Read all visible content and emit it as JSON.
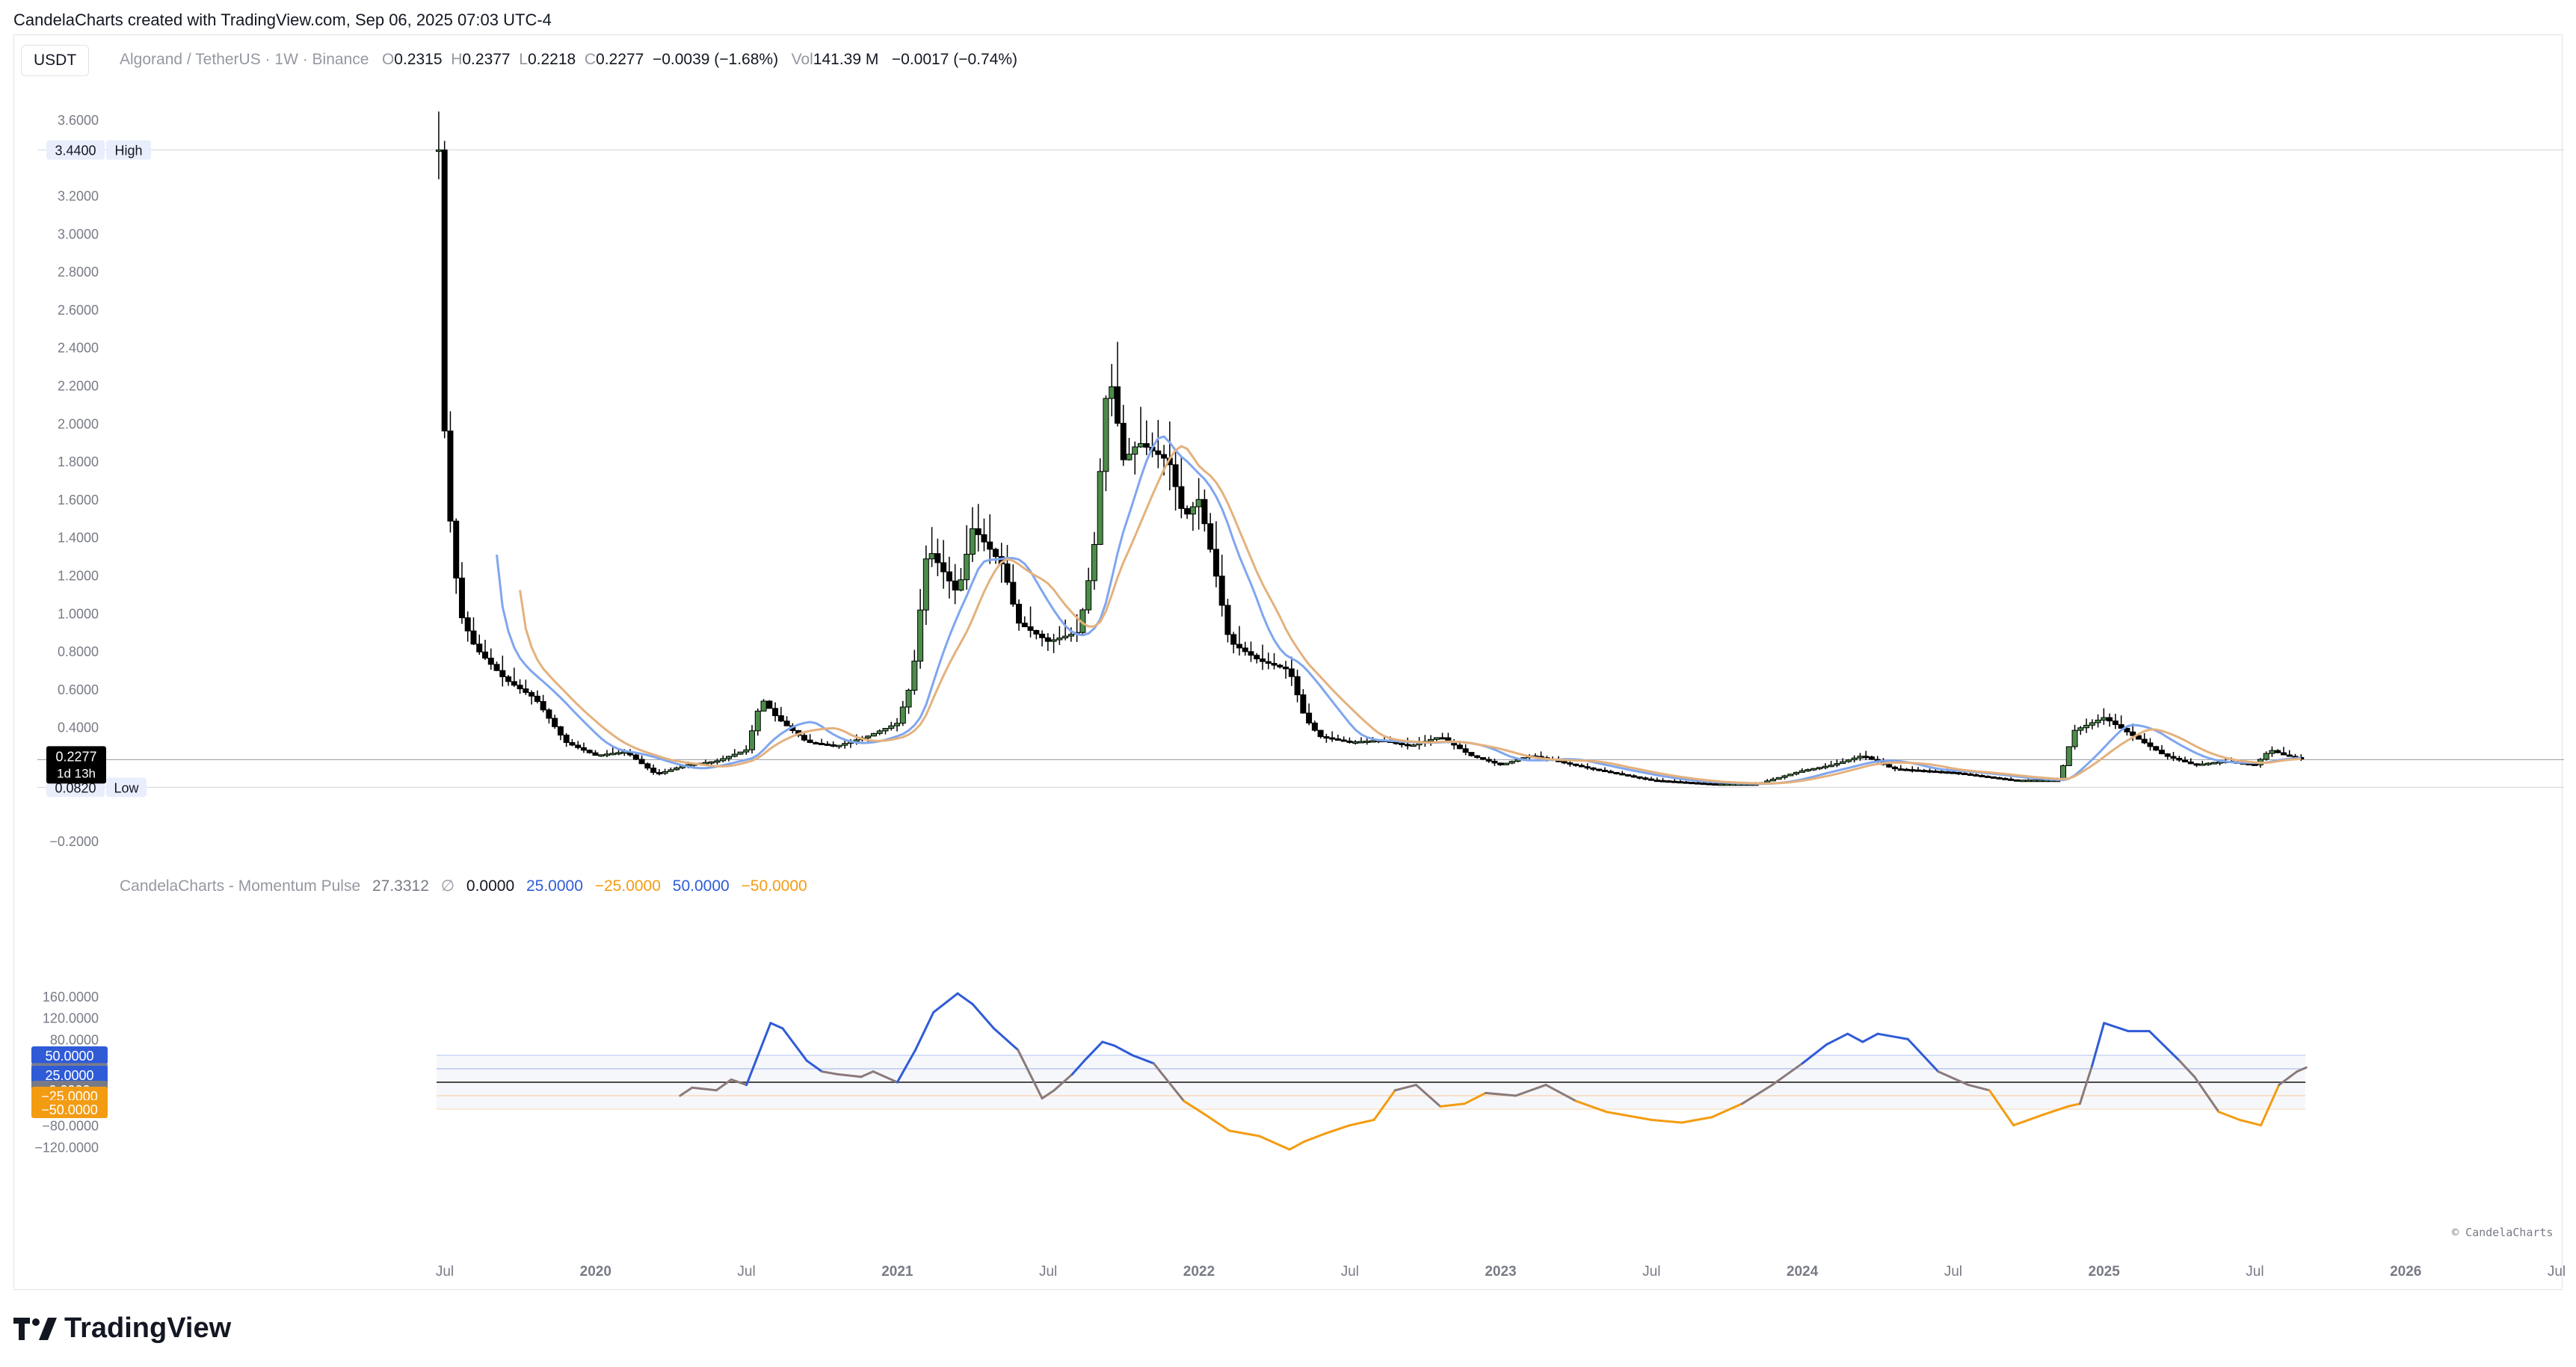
{
  "header": {
    "text": "CandelaCharts created with TradingView.com, Sep 06, 2025 07:03 UTC-4"
  },
  "symbol_button": "USDT",
  "legend": {
    "pair": "Algorand / TetherUS · 1W · Binance",
    "o_label": "O",
    "o": "0.2315",
    "h_label": "H",
    "h": "0.2377",
    "l_label": "L",
    "l": "0.2218",
    "c_label": "C",
    "c": "0.2277",
    "chg": "−0.0039 (−1.68%)",
    "vol_label": "Vol",
    "vol": "141.39 M",
    "vol_chg": "−0.0017 (−0.74%)"
  },
  "indicator_legend": {
    "name": "CandelaCharts - Momentum Pulse",
    "v1": "27.3312",
    "sym": "∅",
    "v2": "0.0000",
    "v3": "25.0000",
    "v4": "−25.0000",
    "v5": "50.0000",
    "v6": "−50.0000"
  },
  "colors": {
    "up": "#4c8c4a",
    "down": "#000000",
    "ma1": "#7fa6ef",
    "ma2": "#e4b17d",
    "pos": "#2f5bd7",
    "neg": "#f39c12",
    "mid": "#8b7a7a"
  },
  "price_labels": {
    "high_val": "3.4400",
    "high_tag": "High",
    "low_val": "0.0820",
    "low_tag": "Low",
    "last_val": "0.2277",
    "countdown": "1d 13h"
  },
  "osc_labels": {
    "p50": "50.0000",
    "cur": "27.3312",
    "p25": "25.0000",
    "zero": "0.0000",
    "m25": "−25.0000",
    "m50": "−50.0000"
  },
  "copyright": "© CandelaCharts",
  "brand": "TradingView",
  "chart_data": [
    {
      "type": "candlestick",
      "title": "Algorand / TetherUS · 1W · Binance",
      "ylim": [
        -0.2,
        3.6
      ],
      "yticks": [
        "3.6000",
        "3.2000",
        "3.0000",
        "2.8000",
        "2.6000",
        "2.4000",
        "2.2000",
        "2.0000",
        "1.8000",
        "1.6000",
        "1.4000",
        "1.2000",
        "1.0000",
        "0.8000",
        "0.6000",
        "0.4000",
        "−0.2000"
      ],
      "x_ticks": [
        "Jul",
        "2020",
        "Jul",
        "2021",
        "Jul",
        "2022",
        "Jul",
        "2023",
        "Jul",
        "2024",
        "Jul",
        "2025",
        "Jul",
        "2026",
        "Jul"
      ],
      "high": 3.44,
      "low": 0.082,
      "last": 0.2277,
      "close_path": [
        [
          2019.48,
          3.44
        ],
        [
          2019.5,
          1.9
        ],
        [
          2019.52,
          1.45
        ],
        [
          2019.55,
          1.0
        ],
        [
          2019.6,
          0.82
        ],
        [
          2019.7,
          0.65
        ],
        [
          2019.8,
          0.55
        ],
        [
          2019.9,
          0.32
        ],
        [
          2020.0,
          0.25
        ],
        [
          2020.1,
          0.27
        ],
        [
          2020.2,
          0.15
        ],
        [
          2020.3,
          0.2
        ],
        [
          2020.4,
          0.22
        ],
        [
          2020.5,
          0.28
        ],
        [
          2020.55,
          0.55
        ],
        [
          2020.6,
          0.45
        ],
        [
          2020.7,
          0.32
        ],
        [
          2020.8,
          0.3
        ],
        [
          2020.9,
          0.35
        ],
        [
          2021.0,
          0.42
        ],
        [
          2021.05,
          0.65
        ],
        [
          2021.1,
          1.35
        ],
        [
          2021.2,
          1.1
        ],
        [
          2021.25,
          1.45
        ],
        [
          2021.3,
          1.35
        ],
        [
          2021.35,
          1.25
        ],
        [
          2021.4,
          0.95
        ],
        [
          2021.5,
          0.85
        ],
        [
          2021.6,
          0.9
        ],
        [
          2021.65,
          1.3
        ],
        [
          2021.7,
          2.3
        ],
        [
          2021.75,
          1.8
        ],
        [
          2021.8,
          1.9
        ],
        [
          2021.9,
          1.8
        ],
        [
          2021.95,
          1.5
        ],
        [
          2022.0,
          1.6
        ],
        [
          2022.05,
          1.25
        ],
        [
          2022.1,
          0.85
        ],
        [
          2022.2,
          0.75
        ],
        [
          2022.3,
          0.7
        ],
        [
          2022.35,
          0.45
        ],
        [
          2022.4,
          0.35
        ],
        [
          2022.5,
          0.32
        ],
        [
          2022.6,
          0.33
        ],
        [
          2022.7,
          0.3
        ],
        [
          2022.8,
          0.35
        ],
        [
          2022.85,
          0.3
        ],
        [
          2022.9,
          0.25
        ],
        [
          2023.0,
          0.2
        ],
        [
          2023.1,
          0.25
        ],
        [
          2023.3,
          0.18
        ],
        [
          2023.5,
          0.12
        ],
        [
          2023.7,
          0.1
        ],
        [
          2023.85,
          0.1
        ],
        [
          2024.0,
          0.17
        ],
        [
          2024.1,
          0.2
        ],
        [
          2024.2,
          0.25
        ],
        [
          2024.3,
          0.18
        ],
        [
          2024.5,
          0.16
        ],
        [
          2024.7,
          0.12
        ],
        [
          2024.85,
          0.12
        ],
        [
          2024.9,
          0.38
        ],
        [
          2025.0,
          0.45
        ],
        [
          2025.1,
          0.35
        ],
        [
          2025.2,
          0.25
        ],
        [
          2025.3,
          0.2
        ],
        [
          2025.4,
          0.22
        ],
        [
          2025.5,
          0.2
        ],
        [
          2025.55,
          0.28
        ],
        [
          2025.6,
          0.25
        ],
        [
          2025.67,
          0.2277
        ]
      ]
    },
    {
      "type": "line",
      "title": "CandelaCharts - Momentum Pulse",
      "ylim": [
        -130,
        170
      ],
      "yticks": [
        "160.0000",
        "120.0000",
        "80.0000",
        "−80.0000",
        "−120.0000"
      ],
      "levels": [
        50,
        25,
        0,
        -25,
        -50
      ],
      "last": 27.3312,
      "x": [
        2020.28,
        2020.32,
        2020.4,
        2020.45,
        2020.5,
        2020.58,
        2020.62,
        2020.7,
        2020.75,
        2020.8,
        2020.88,
        2020.92,
        2021.0,
        2021.06,
        2021.12,
        2021.2,
        2021.25,
        2021.32,
        2021.4,
        2021.48,
        2021.52,
        2021.58,
        2021.62,
        2021.68,
        2021.72,
        2021.78,
        2021.85,
        2021.95,
        2022.02,
        2022.1,
        2022.2,
        2022.3,
        2022.35,
        2022.42,
        2022.5,
        2022.58,
        2022.65,
        2022.72,
        2022.8,
        2022.88,
        2022.95,
        2023.05,
        2023.15,
        2023.25,
        2023.35,
        2023.5,
        2023.6,
        2023.7,
        2023.8,
        2023.9,
        2024.0,
        2024.08,
        2024.15,
        2024.2,
        2024.25,
        2024.35,
        2024.45,
        2024.55,
        2024.62,
        2024.7,
        2024.8,
        2024.88,
        2024.92,
        2024.96,
        2025.0,
        2025.08,
        2025.15,
        2025.25,
        2025.3,
        2025.38,
        2025.45,
        2025.52,
        2025.58,
        2025.64,
        2025.67
      ],
      "y": [
        -25,
        -10,
        -15,
        5,
        -5,
        110,
        100,
        40,
        20,
        15,
        10,
        20,
        0,
        60,
        130,
        165,
        145,
        100,
        60,
        -30,
        -15,
        15,
        40,
        75,
        68,
        50,
        35,
        -35,
        -60,
        -90,
        -100,
        -125,
        -110,
        -95,
        -80,
        -70,
        -15,
        -5,
        -45,
        -40,
        -20,
        -25,
        -5,
        -35,
        -55,
        -70,
        -75,
        -65,
        -40,
        -5,
        35,
        70,
        90,
        75,
        90,
        80,
        20,
        -5,
        -15,
        -80,
        -60,
        -45,
        -40,
        30,
        110,
        95,
        95,
        40,
        10,
        -55,
        -70,
        -80,
        -5,
        20,
        27.3312
      ]
    }
  ]
}
